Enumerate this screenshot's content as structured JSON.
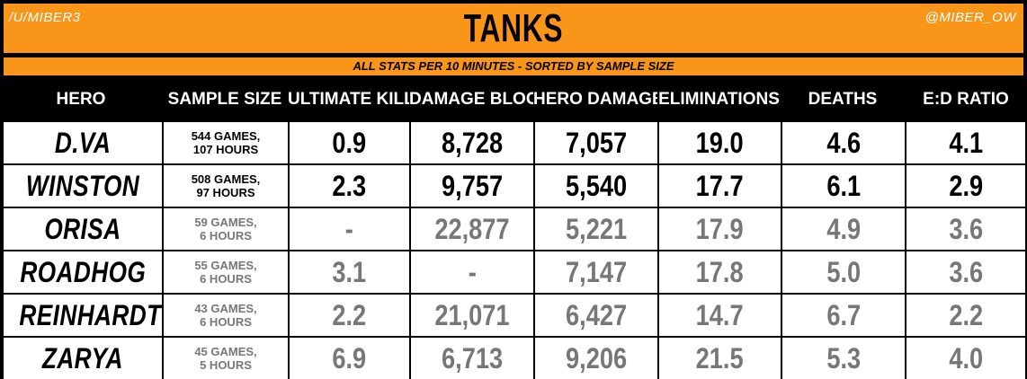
{
  "header": {
    "title": "TANKS",
    "left_tag": "/U/MIBER3",
    "right_tag": "@MIBER_OW",
    "subtitle": "ALL STATS PER 10 MINUTES - SORTED BY SAMPLE SIZE"
  },
  "columns": [
    "HERO",
    "SAMPLE SIZE",
    "ULTIMATE KILLS",
    "DAMAGE BLOCKED",
    "HERO DAMAGE",
    "ELIMINATIONS",
    "DEATHS",
    "E:D RATIO"
  ],
  "rows": [
    {
      "hero": "D.VA",
      "games": "544 GAMES,",
      "hours": "107 HOURS",
      "ult_kills": "0.9",
      "dmg_blocked": "8,728",
      "hero_dmg": "7,057",
      "elims": "19.0",
      "deaths": "4.6",
      "ed_ratio": "4.1"
    },
    {
      "hero": "WINSTON",
      "games": "508 GAMES,",
      "hours": "97 HOURS",
      "ult_kills": "2.3",
      "dmg_blocked": "9,757",
      "hero_dmg": "5,540",
      "elims": "17.7",
      "deaths": "6.1",
      "ed_ratio": "2.9"
    },
    {
      "hero": "ORISA",
      "games": "59 GAMES,",
      "hours": "6 HOURS",
      "ult_kills": "-",
      "dmg_blocked": "22,877",
      "hero_dmg": "5,221",
      "elims": "17.9",
      "deaths": "4.9",
      "ed_ratio": "3.6"
    },
    {
      "hero": "ROADHOG",
      "games": "55 GAMES,",
      "hours": "6 HOURS",
      "ult_kills": "3.1",
      "dmg_blocked": "-",
      "hero_dmg": "7,147",
      "elims": "17.8",
      "deaths": "5.0",
      "ed_ratio": "3.6"
    },
    {
      "hero": "REINHARDT",
      "games": "43 GAMES,",
      "hours": "6 HOURS",
      "ult_kills": "2.2",
      "dmg_blocked": "21,071",
      "hero_dmg": "6,427",
      "elims": "14.7",
      "deaths": "6.7",
      "ed_ratio": "2.2"
    },
    {
      "hero": "ZARYA",
      "games": "45 GAMES,",
      "hours": "5 HOURS",
      "ult_kills": "6.9",
      "dmg_blocked": "6,713",
      "hero_dmg": "9,206",
      "elims": "21.5",
      "deaths": "5.3",
      "ed_ratio": "4.0"
    }
  ],
  "colors": {
    "accent": "#f9961a",
    "header_bg": "#000000",
    "large_sample_text": "#000000",
    "small_sample_text": "#777777"
  }
}
